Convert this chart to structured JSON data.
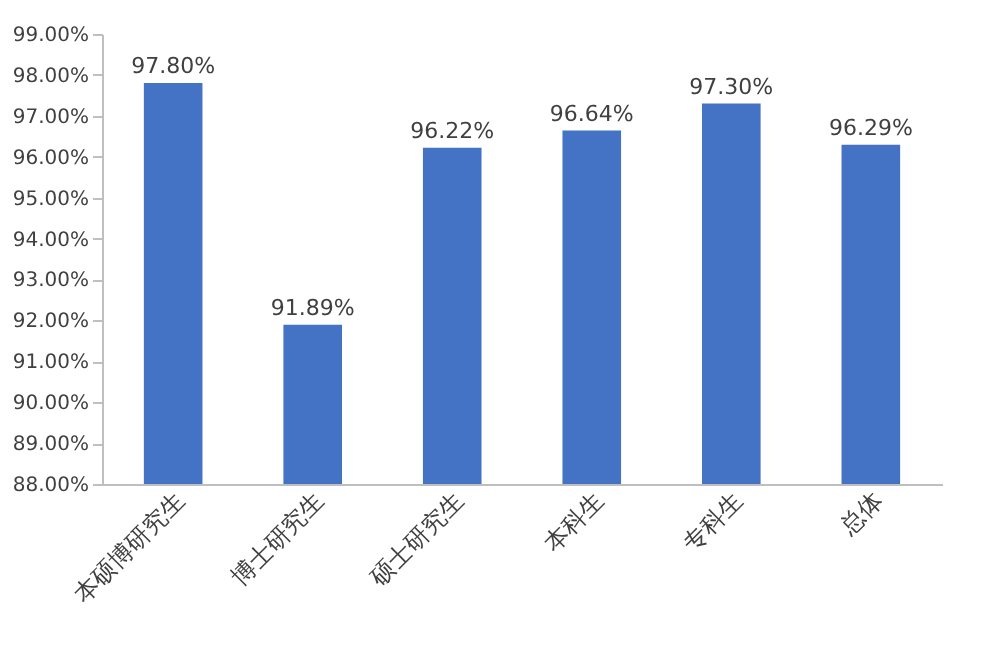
{
  "chart_data": {
    "type": "bar",
    "categories": [
      "本硕博研究生",
      "博士研究生",
      "硕士研究生",
      "本科生",
      "专科生",
      "总体"
    ],
    "values": [
      97.8,
      91.89,
      96.22,
      96.64,
      97.3,
      96.29
    ],
    "value_labels": [
      "97.80%",
      "91.89%",
      "96.22%",
      "96.64%",
      "97.30%",
      "96.29%"
    ],
    "color": "#4472c4",
    "ylim": [
      88,
      99
    ],
    "yticks": [
      {
        "value": 88,
        "label": "88.00%"
      },
      {
        "value": 89,
        "label": "89.00%"
      },
      {
        "value": 90,
        "label": "90.00%"
      },
      {
        "value": 91,
        "label": "91.00%"
      },
      {
        "value": 92,
        "label": "92.00%"
      },
      {
        "value": 93,
        "label": "93.00%"
      },
      {
        "value": 94,
        "label": "94.00%"
      },
      {
        "value": 95,
        "label": "95.00%"
      },
      {
        "value": 96,
        "label": "96.00%"
      },
      {
        "value": 97,
        "label": "97.00%"
      },
      {
        "value": 98,
        "label": "98.00%"
      },
      {
        "value": 99,
        "label": "99.00%"
      }
    ],
    "grid": false
  }
}
